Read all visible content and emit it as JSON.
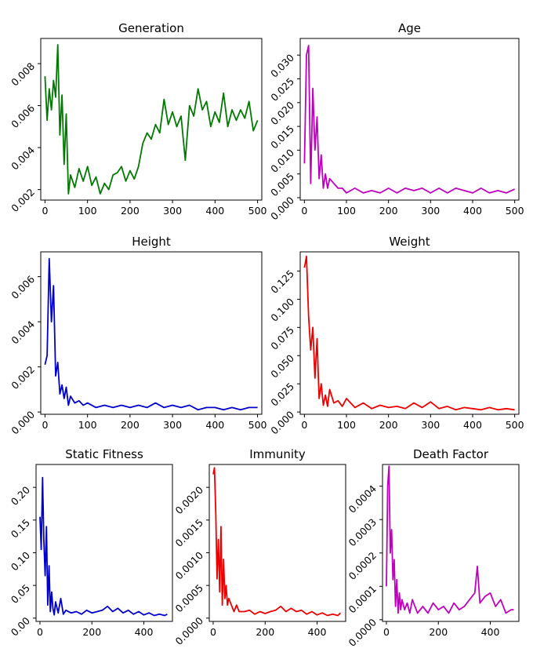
{
  "chart_data": [
    {
      "type": "line",
      "title": "Generation",
      "color": "#007a00",
      "xlabel": "",
      "ylabel": "",
      "xlim": [
        -10,
        510
      ],
      "ylim": [
        0.0015,
        0.0092
      ],
      "xticks": [
        0,
        100,
        200,
        300,
        400,
        500
      ],
      "xtick_labels": [
        "0",
        "100",
        "200",
        "300",
        "400",
        "500"
      ],
      "yticks": [
        0.002,
        0.004,
        0.006,
        0.008
      ],
      "ytick_labels": [
        "0.002",
        "0.004",
        "0.006",
        "0.008"
      ],
      "x": [
        0,
        5,
        10,
        15,
        20,
        25,
        30,
        35,
        40,
        45,
        50,
        55,
        60,
        70,
        80,
        90,
        100,
        110,
        120,
        130,
        140,
        150,
        160,
        170,
        180,
        190,
        200,
        210,
        220,
        230,
        240,
        250,
        260,
        270,
        280,
        290,
        300,
        310,
        320,
        330,
        340,
        350,
        360,
        370,
        380,
        390,
        400,
        410,
        420,
        430,
        440,
        450,
        460,
        470,
        480,
        490,
        500
      ],
      "y": [
        0.0074,
        0.0053,
        0.0068,
        0.0058,
        0.0072,
        0.0064,
        0.0089,
        0.0046,
        0.0065,
        0.0032,
        0.0056,
        0.0018,
        0.0027,
        0.0021,
        0.003,
        0.0024,
        0.0031,
        0.0022,
        0.0026,
        0.0018,
        0.0023,
        0.002,
        0.0027,
        0.0028,
        0.0031,
        0.0024,
        0.0029,
        0.0025,
        0.0031,
        0.0042,
        0.0047,
        0.0044,
        0.0051,
        0.0047,
        0.0063,
        0.0051,
        0.0057,
        0.005,
        0.0055,
        0.0034,
        0.006,
        0.0055,
        0.0068,
        0.0058,
        0.0062,
        0.005,
        0.0057,
        0.0052,
        0.0066,
        0.005,
        0.0058,
        0.0053,
        0.0058,
        0.0054,
        0.0062,
        0.0048,
        0.0053
      ]
    },
    {
      "type": "line",
      "title": "Age",
      "color": "#bf00bf",
      "xlabel": "",
      "ylabel": "",
      "xlim": [
        -10,
        510
      ],
      "ylim": [
        -0.0005,
        0.0335
      ],
      "xticks": [
        0,
        100,
        200,
        300,
        400,
        500
      ],
      "xtick_labels": [
        "0",
        "100",
        "200",
        "300",
        "400",
        "500"
      ],
      "yticks": [
        0.0,
        0.005,
        0.01,
        0.015,
        0.02,
        0.025,
        0.03
      ],
      "ytick_labels": [
        "0.000",
        "0.005",
        "0.010",
        "0.015",
        "0.020",
        "0.025",
        "0.030"
      ],
      "x": [
        0,
        5,
        10,
        15,
        20,
        25,
        30,
        35,
        40,
        45,
        50,
        55,
        60,
        70,
        80,
        90,
        100,
        120,
        140,
        160,
        180,
        200,
        220,
        240,
        260,
        280,
        300,
        320,
        340,
        360,
        380,
        400,
        420,
        440,
        460,
        480,
        500
      ],
      "y": [
        0.0072,
        0.03,
        0.032,
        0.003,
        0.023,
        0.01,
        0.017,
        0.004,
        0.009,
        0.002,
        0.005,
        0.002,
        0.004,
        0.003,
        0.002,
        0.002,
        0.001,
        0.002,
        0.001,
        0.0015,
        0.001,
        0.002,
        0.001,
        0.002,
        0.0015,
        0.002,
        0.001,
        0.002,
        0.001,
        0.002,
        0.0015,
        0.001,
        0.002,
        0.001,
        0.0015,
        0.001,
        0.0018
      ]
    },
    {
      "type": "line",
      "title": "Height",
      "color": "#0000cc",
      "xlabel": "",
      "ylabel": "",
      "xlim": [
        -10,
        510
      ],
      "ylim": [
        -0.0001,
        0.0071
      ],
      "xticks": [
        0,
        100,
        200,
        300,
        400,
        500
      ],
      "xtick_labels": [
        "0",
        "100",
        "200",
        "300",
        "400",
        "500"
      ],
      "yticks": [
        0.0,
        0.002,
        0.004,
        0.006
      ],
      "ytick_labels": [
        "0.000",
        "0.002",
        "0.004",
        "0.006"
      ],
      "x": [
        0,
        5,
        10,
        15,
        20,
        25,
        30,
        35,
        40,
        45,
        50,
        55,
        60,
        70,
        80,
        90,
        100,
        120,
        140,
        160,
        180,
        200,
        220,
        240,
        260,
        280,
        300,
        320,
        340,
        360,
        380,
        400,
        420,
        440,
        460,
        480,
        500
      ],
      "y": [
        0.0021,
        0.0025,
        0.0068,
        0.004,
        0.0056,
        0.0016,
        0.0022,
        0.0008,
        0.0012,
        0.0006,
        0.0011,
        0.0003,
        0.0007,
        0.0004,
        0.0005,
        0.0003,
        0.0004,
        0.0002,
        0.0003,
        0.0002,
        0.0003,
        0.0002,
        0.0003,
        0.0002,
        0.0004,
        0.0002,
        0.0003,
        0.0002,
        0.0003,
        0.0001,
        0.0002,
        0.0002,
        0.0001,
        0.0002,
        0.0001,
        0.0002,
        0.0002
      ]
    },
    {
      "type": "line",
      "title": "Weight",
      "color": "#ee0000",
      "xlabel": "",
      "ylabel": "",
      "xlim": [
        -10,
        510
      ],
      "ylim": [
        -0.002,
        0.142
      ],
      "xticks": [
        0,
        100,
        200,
        300,
        400,
        500
      ],
      "xtick_labels": [
        "0",
        "100",
        "200",
        "300",
        "400",
        "500"
      ],
      "yticks": [
        0.0,
        0.025,
        0.05,
        0.075,
        0.1,
        0.125
      ],
      "ytick_labels": [
        "0.000",
        "0.025",
        "0.050",
        "0.075",
        "0.100",
        "0.125"
      ],
      "x": [
        0,
        5,
        10,
        15,
        20,
        25,
        30,
        35,
        40,
        45,
        50,
        55,
        60,
        70,
        80,
        90,
        100,
        120,
        140,
        160,
        180,
        200,
        220,
        240,
        260,
        280,
        300,
        320,
        340,
        360,
        380,
        400,
        420,
        440,
        460,
        480,
        500
      ],
      "y": [
        0.128,
        0.138,
        0.085,
        0.055,
        0.075,
        0.03,
        0.065,
        0.012,
        0.025,
        0.006,
        0.015,
        0.005,
        0.02,
        0.008,
        0.01,
        0.005,
        0.012,
        0.004,
        0.008,
        0.003,
        0.006,
        0.004,
        0.005,
        0.003,
        0.008,
        0.004,
        0.009,
        0.003,
        0.005,
        0.002,
        0.004,
        0.003,
        0.002,
        0.004,
        0.002,
        0.003,
        0.002
      ]
    },
    {
      "type": "line",
      "title": "Static Fitness",
      "color": "#0000cc",
      "xlabel": "",
      "ylabel": "",
      "xlim": [
        -15,
        510
      ],
      "ylim": [
        -0.005,
        0.235
      ],
      "xticks": [
        0,
        200,
        400
      ],
      "xtick_labels": [
        "0",
        "200",
        "400"
      ],
      "yticks": [
        0.0,
        0.05,
        0.1,
        0.15,
        0.2
      ],
      "ytick_labels": [
        "0.00",
        "0.05",
        "0.10",
        "0.15",
        "0.20"
      ],
      "x": [
        0,
        5,
        10,
        15,
        20,
        25,
        30,
        35,
        40,
        45,
        50,
        55,
        60,
        70,
        80,
        90,
        100,
        120,
        140,
        160,
        180,
        200,
        220,
        240,
        260,
        280,
        300,
        320,
        340,
        360,
        380,
        400,
        420,
        440,
        460,
        480,
        490
      ],
      "y": [
        0.155,
        0.105,
        0.215,
        0.12,
        0.065,
        0.14,
        0.02,
        0.08,
        0.01,
        0.04,
        0.015,
        0.005,
        0.025,
        0.008,
        0.03,
        0.006,
        0.012,
        0.008,
        0.01,
        0.006,
        0.012,
        0.008,
        0.01,
        0.012,
        0.018,
        0.01,
        0.015,
        0.008,
        0.012,
        0.006,
        0.01,
        0.005,
        0.008,
        0.004,
        0.006,
        0.004,
        0.006
      ]
    },
    {
      "type": "line",
      "title": "Immunity",
      "color": "#ee0000",
      "xlabel": "",
      "ylabel": "",
      "xlim": [
        -15,
        510
      ],
      "ylim": [
        -5e-05,
        0.00235
      ],
      "xticks": [
        0,
        200,
        400
      ],
      "xtick_labels": [
        "0",
        "200",
        "400"
      ],
      "yticks": [
        0.0,
        0.0005,
        0.001,
        0.0015,
        0.002
      ],
      "ytick_labels": [
        "0.0000",
        "0.0005",
        "0.0010",
        "0.0015",
        "0.0020"
      ],
      "x": [
        0,
        5,
        10,
        15,
        20,
        25,
        30,
        35,
        40,
        45,
        50,
        55,
        60,
        70,
        80,
        90,
        100,
        120,
        140,
        160,
        180,
        200,
        220,
        240,
        260,
        280,
        300,
        320,
        340,
        360,
        380,
        400,
        420,
        440,
        460,
        480,
        490
      ],
      "y": [
        0.0022,
        0.0023,
        0.0016,
        0.0006,
        0.0012,
        0.0004,
        0.0014,
        0.0002,
        0.0009,
        0.0003,
        0.0005,
        0.0002,
        0.0003,
        0.0002,
        0.0001,
        0.0002,
        0.0001,
        0.0001,
        0.00012,
        6e-05,
        0.0001,
        7e-05,
        0.0001,
        0.00012,
        0.00018,
        0.0001,
        0.00015,
        0.0001,
        0.00012,
        6e-05,
        0.0001,
        5e-05,
        8e-05,
        4e-05,
        6e-05,
        4e-05,
        8e-05
      ]
    },
    {
      "type": "line",
      "title": "Death Factor",
      "color": "#bf00bf",
      "xlabel": "",
      "ylabel": "",
      "xlim": [
        -15,
        510
      ],
      "ylim": [
        -5e-06,
        0.000465
      ],
      "xticks": [
        0,
        200,
        400
      ],
      "xtick_labels": [
        "0",
        "200",
        "400"
      ],
      "yticks": [
        0.0,
        0.0001,
        0.0002,
        0.0003,
        0.0004
      ],
      "ytick_labels": [
        "0.0000",
        "0.0001",
        "0.0002",
        "0.0003",
        "0.0004"
      ],
      "x": [
        0,
        5,
        10,
        15,
        20,
        25,
        30,
        35,
        40,
        45,
        50,
        55,
        60,
        70,
        80,
        90,
        100,
        120,
        140,
        160,
        180,
        200,
        220,
        240,
        260,
        280,
        300,
        320,
        340,
        350,
        360,
        380,
        400,
        420,
        440,
        460,
        480,
        490
      ],
      "y": [
        0.0001,
        0.0004,
        0.00046,
        0.0002,
        0.00027,
        0.00012,
        0.00018,
        4e-05,
        0.00012,
        2e-05,
        8e-05,
        3e-05,
        6e-05,
        3e-05,
        5e-05,
        2e-05,
        6e-05,
        2e-05,
        4e-05,
        2e-05,
        5e-05,
        3e-05,
        4e-05,
        2e-05,
        5e-05,
        3e-05,
        4e-05,
        6e-05,
        8e-05,
        0.00016,
        5e-05,
        7e-05,
        8e-05,
        4e-05,
        6e-05,
        2e-05,
        3e-05,
        3e-05
      ]
    }
  ]
}
